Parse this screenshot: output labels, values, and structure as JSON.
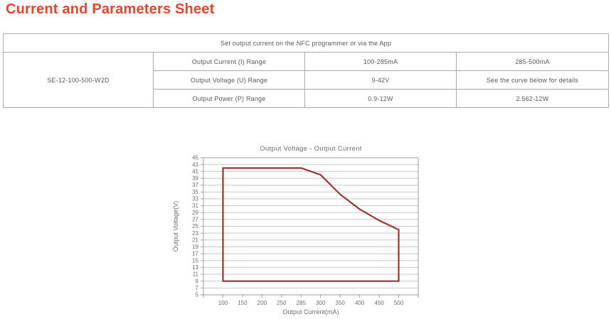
{
  "page_title": "Current and Parameters Sheet",
  "table": {
    "header": "Set output current on the NFC programmer or via the App",
    "model": "SE-12-100-500-W2D",
    "rows": [
      {
        "label": "Output Current (I) Range",
        "range1": "100-285mA",
        "range2": "285-500mA"
      },
      {
        "label": "Output Voltage (U) Range",
        "range1": "9-42V",
        "range2": "See the curve below for details"
      },
      {
        "label": "Output Power (P) Range",
        "range1": "0.9-12W",
        "range2": "2.562-12W"
      }
    ]
  },
  "chart_data": {
    "type": "line",
    "title": "Output Voltage - Output Current",
    "xlabel": "Output Current(mA)",
    "ylabel": "Output Voltage(V)",
    "x_axis_mode": "categorical",
    "categories": [
      100,
      150,
      200,
      250,
      285,
      300,
      350,
      400,
      450,
      500
    ],
    "ylim": [
      5,
      45
    ],
    "y_tick_step": 2,
    "grid": true,
    "legend": false,
    "series": [
      {
        "name": "operating-region-boundary",
        "closed": true,
        "points": [
          [
            100,
            9
          ],
          [
            100,
            42
          ],
          [
            285,
            42
          ],
          [
            300,
            40
          ],
          [
            350,
            34.3
          ],
          [
            400,
            30
          ],
          [
            450,
            26.7
          ],
          [
            500,
            24
          ],
          [
            500,
            9
          ]
        ]
      }
    ]
  },
  "colors": {
    "accent_red": "#e8432d",
    "curve": "#9e352c",
    "grid": "#c7c8ca",
    "frame": "#9d9fa2",
    "axis_text": "#6d6e71",
    "table_text": "#58595b",
    "table_border": "#a7a9ac"
  }
}
